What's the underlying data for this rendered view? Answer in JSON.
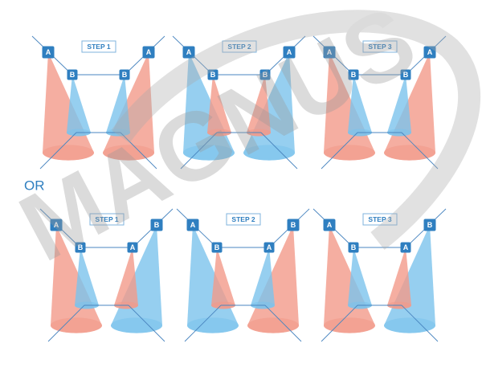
{
  "watermark": "MAGNUS",
  "separator": "OR",
  "rows": [
    {
      "panels": [
        {
          "step": "STEP 1",
          "labels": [
            "A",
            "B",
            "B",
            "A"
          ]
        },
        {
          "step": "STEP 2",
          "labels": [
            "A",
            "B",
            "B",
            "A"
          ]
        },
        {
          "step": "STEP 3",
          "labels": [
            "A",
            "B",
            "B",
            "A"
          ]
        }
      ]
    },
    {
      "panels": [
        {
          "step": "STEP 1",
          "labels": [
            "A",
            "B",
            "A",
            "B"
          ]
        },
        {
          "step": "STEP 2",
          "labels": [
            "A",
            "B",
            "A",
            "B"
          ]
        },
        {
          "step": "STEP 3",
          "labels": [
            "A",
            "B",
            "A",
            "B"
          ]
        }
      ]
    }
  ]
}
